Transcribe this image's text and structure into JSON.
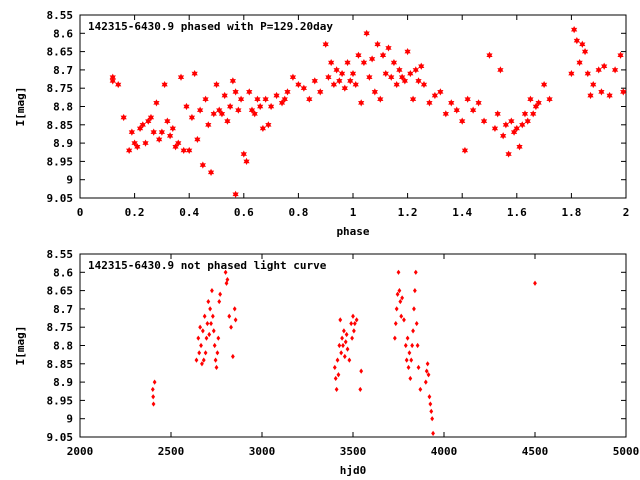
{
  "chart_data": [
    {
      "type": "scatter",
      "title": "142315-6430.9 phased with P=129.20day",
      "xlabel": "phase",
      "ylabel": "I[mag]",
      "xlim": [
        0,
        2
      ],
      "ylim": [
        8.55,
        9.05
      ],
      "y_inverted": true,
      "xticks": [
        "0",
        "0.2",
        "0.4",
        "0.6",
        "0.8",
        "1",
        "1.2",
        "1.4",
        "1.6",
        "1.8",
        "2"
      ],
      "yticks": [
        "8.55",
        "8.6",
        "8.65",
        "8.7",
        "8.75",
        "8.8",
        "8.85",
        "8.9",
        "8.95",
        "9",
        "9.05"
      ],
      "xtick_values": [
        0,
        0.2,
        0.4,
        0.6,
        0.8,
        1,
        1.2,
        1.4,
        1.6,
        1.8,
        2
      ],
      "ytick_values": [
        8.55,
        8.6,
        8.65,
        8.7,
        8.75,
        8.8,
        8.85,
        8.9,
        8.95,
        9,
        9.05
      ],
      "grid": false,
      "marker": "star",
      "color": "#ff0000",
      "points": [
        [
          0.12,
          8.72
        ],
        [
          0.12,
          8.73
        ],
        [
          0.14,
          8.74
        ],
        [
          0.16,
          8.83
        ],
        [
          0.18,
          8.92
        ],
        [
          0.19,
          8.87
        ],
        [
          0.2,
          8.9
        ],
        [
          0.21,
          8.91
        ],
        [
          0.22,
          8.86
        ],
        [
          0.23,
          8.85
        ],
        [
          0.24,
          8.9
        ],
        [
          0.25,
          8.84
        ],
        [
          0.26,
          8.83
        ],
        [
          0.27,
          8.87
        ],
        [
          0.28,
          8.79
        ],
        [
          0.29,
          8.89
        ],
        [
          0.3,
          8.87
        ],
        [
          0.31,
          8.74
        ],
        [
          0.32,
          8.84
        ],
        [
          0.33,
          8.88
        ],
        [
          0.34,
          8.86
        ],
        [
          0.35,
          8.91
        ],
        [
          0.36,
          8.9
        ],
        [
          0.37,
          8.72
        ],
        [
          0.38,
          8.92
        ],
        [
          0.39,
          8.8
        ],
        [
          0.4,
          8.92
        ],
        [
          0.41,
          8.83
        ],
        [
          0.42,
          8.71
        ],
        [
          0.43,
          8.89
        ],
        [
          0.44,
          8.81
        ],
        [
          0.45,
          8.96
        ],
        [
          0.46,
          8.78
        ],
        [
          0.47,
          8.85
        ],
        [
          0.48,
          8.98
        ],
        [
          0.49,
          8.82
        ],
        [
          0.5,
          8.74
        ],
        [
          0.51,
          8.81
        ],
        [
          0.52,
          8.82
        ],
        [
          0.53,
          8.77
        ],
        [
          0.54,
          8.84
        ],
        [
          0.55,
          8.8
        ],
        [
          0.56,
          8.73
        ],
        [
          0.57,
          8.76
        ],
        [
          0.57,
          9.04
        ],
        [
          0.58,
          8.81
        ],
        [
          0.59,
          8.78
        ],
        [
          0.6,
          8.93
        ],
        [
          0.61,
          8.95
        ],
        [
          0.62,
          8.76
        ],
        [
          0.63,
          8.81
        ],
        [
          0.64,
          8.82
        ],
        [
          0.65,
          8.78
        ],
        [
          0.66,
          8.8
        ],
        [
          0.67,
          8.86
        ],
        [
          0.68,
          8.78
        ],
        [
          0.69,
          8.85
        ],
        [
          0.7,
          8.8
        ],
        [
          0.72,
          8.77
        ],
        [
          0.74,
          8.79
        ],
        [
          0.75,
          8.78
        ],
        [
          0.76,
          8.76
        ],
        [
          0.78,
          8.72
        ],
        [
          0.8,
          8.74
        ],
        [
          0.82,
          8.75
        ],
        [
          0.84,
          8.78
        ],
        [
          0.86,
          8.73
        ],
        [
          0.88,
          8.76
        ],
        [
          0.9,
          8.63
        ],
        [
          0.91,
          8.72
        ],
        [
          0.92,
          8.68
        ],
        [
          0.93,
          8.74
        ],
        [
          0.94,
          8.7
        ],
        [
          0.95,
          8.73
        ],
        [
          0.96,
          8.71
        ],
        [
          0.97,
          8.75
        ],
        [
          0.98,
          8.68
        ],
        [
          0.99,
          8.73
        ],
        [
          1.0,
          8.71
        ],
        [
          1.01,
          8.74
        ],
        [
          1.02,
          8.66
        ],
        [
          1.03,
          8.79
        ],
        [
          1.04,
          8.68
        ],
        [
          1.05,
          8.6
        ],
        [
          1.06,
          8.72
        ],
        [
          1.07,
          8.67
        ],
        [
          1.08,
          8.76
        ],
        [
          1.09,
          8.63
        ],
        [
          1.1,
          8.78
        ],
        [
          1.11,
          8.66
        ],
        [
          1.12,
          8.71
        ],
        [
          1.13,
          8.64
        ],
        [
          1.14,
          8.72
        ],
        [
          1.15,
          8.68
        ],
        [
          1.16,
          8.74
        ],
        [
          1.17,
          8.7
        ],
        [
          1.18,
          8.72
        ],
        [
          1.19,
          8.73
        ],
        [
          1.2,
          8.65
        ],
        [
          1.21,
          8.71
        ],
        [
          1.22,
          8.78
        ],
        [
          1.23,
          8.7
        ],
        [
          1.24,
          8.73
        ],
        [
          1.25,
          8.69
        ],
        [
          1.26,
          8.74
        ],
        [
          1.28,
          8.79
        ],
        [
          1.3,
          8.77
        ],
        [
          1.32,
          8.76
        ],
        [
          1.34,
          8.82
        ],
        [
          1.36,
          8.79
        ],
        [
          1.38,
          8.81
        ],
        [
          1.4,
          8.84
        ],
        [
          1.41,
          8.92
        ],
        [
          1.42,
          8.78
        ],
        [
          1.44,
          8.81
        ],
        [
          1.46,
          8.79
        ],
        [
          1.48,
          8.84
        ],
        [
          1.5,
          8.66
        ],
        [
          1.52,
          8.86
        ],
        [
          1.53,
          8.82
        ],
        [
          1.54,
          8.7
        ],
        [
          1.55,
          8.88
        ],
        [
          1.56,
          8.85
        ],
        [
          1.57,
          8.93
        ],
        [
          1.58,
          8.84
        ],
        [
          1.59,
          8.87
        ],
        [
          1.6,
          8.86
        ],
        [
          1.61,
          8.91
        ],
        [
          1.62,
          8.85
        ],
        [
          1.63,
          8.82
        ],
        [
          1.64,
          8.84
        ],
        [
          1.65,
          8.78
        ],
        [
          1.66,
          8.82
        ],
        [
          1.67,
          8.8
        ],
        [
          1.68,
          8.79
        ],
        [
          1.7,
          8.74
        ],
        [
          1.72,
          8.78
        ],
        [
          1.8,
          8.71
        ],
        [
          1.81,
          8.59
        ],
        [
          1.82,
          8.62
        ],
        [
          1.83,
          8.68
        ],
        [
          1.84,
          8.63
        ],
        [
          1.85,
          8.65
        ],
        [
          1.86,
          8.71
        ],
        [
          1.87,
          8.77
        ],
        [
          1.88,
          8.74
        ],
        [
          1.9,
          8.7
        ],
        [
          1.91,
          8.76
        ],
        [
          1.92,
          8.69
        ],
        [
          1.94,
          8.77
        ],
        [
          1.96,
          8.7
        ],
        [
          1.98,
          8.66
        ],
        [
          1.99,
          8.76
        ]
      ]
    },
    {
      "type": "scatter",
      "title": "142315-6430.9 not phased light curve",
      "xlabel": "hjd0",
      "ylabel": "I[mag]",
      "xlim": [
        2000,
        5000
      ],
      "ylim": [
        8.55,
        9.05
      ],
      "y_inverted": true,
      "xticks": [
        "2000",
        "2500",
        "3000",
        "3500",
        "4000",
        "4500",
        "5000"
      ],
      "yticks": [
        "8.55",
        "8.6",
        "8.65",
        "8.7",
        "8.75",
        "8.8",
        "8.85",
        "8.9",
        "8.95",
        "9",
        "9.05"
      ],
      "xtick_values": [
        2000,
        2500,
        3000,
        3500,
        4000,
        4500,
        5000
      ],
      "ytick_values": [
        8.55,
        8.6,
        8.65,
        8.7,
        8.75,
        8.8,
        8.85,
        8.9,
        8.95,
        9,
        9.05
      ],
      "grid": false,
      "marker": "diamond",
      "color": "#ff0000",
      "points": [
        [
          2400,
          8.92
        ],
        [
          2402,
          8.94
        ],
        [
          2404,
          8.96
        ],
        [
          2410,
          8.9
        ],
        [
          2640,
          8.84
        ],
        [
          2650,
          8.78
        ],
        [
          2655,
          8.82
        ],
        [
          2660,
          8.75
        ],
        [
          2665,
          8.8
        ],
        [
          2670,
          8.85
        ],
        [
          2675,
          8.76
        ],
        [
          2680,
          8.84
        ],
        [
          2685,
          8.72
        ],
        [
          2690,
          8.82
        ],
        [
          2695,
          8.78
        ],
        [
          2700,
          8.74
        ],
        [
          2705,
          8.68
        ],
        [
          2710,
          8.77
        ],
        [
          2715,
          8.7
        ],
        [
          2720,
          8.74
        ],
        [
          2725,
          8.65
        ],
        [
          2730,
          8.72
        ],
        [
          2735,
          8.76
        ],
        [
          2740,
          8.8
        ],
        [
          2745,
          8.84
        ],
        [
          2750,
          8.86
        ],
        [
          2755,
          8.82
        ],
        [
          2760,
          8.78
        ],
        [
          2765,
          8.68
        ],
        [
          2770,
          8.66
        ],
        [
          2800,
          8.6
        ],
        [
          2805,
          8.63
        ],
        [
          2810,
          8.62
        ],
        [
          2820,
          8.72
        ],
        [
          2830,
          8.75
        ],
        [
          2840,
          8.83
        ],
        [
          2850,
          8.7
        ],
        [
          2855,
          8.73
        ],
        [
          3400,
          8.86
        ],
        [
          3405,
          8.89
        ],
        [
          3410,
          8.92
        ],
        [
          3415,
          8.84
        ],
        [
          3420,
          8.88
        ],
        [
          3425,
          8.8
        ],
        [
          3430,
          8.73
        ],
        [
          3435,
          8.82
        ],
        [
          3440,
          8.78
        ],
        [
          3445,
          8.8
        ],
        [
          3450,
          8.76
        ],
        [
          3455,
          8.83
        ],
        [
          3460,
          8.79
        ],
        [
          3465,
          8.77
        ],
        [
          3470,
          8.81
        ],
        [
          3480,
          8.84
        ],
        [
          3490,
          8.74
        ],
        [
          3495,
          8.78
        ],
        [
          3500,
          8.72
        ],
        [
          3505,
          8.76
        ],
        [
          3510,
          8.74
        ],
        [
          3520,
          8.73
        ],
        [
          3540,
          8.92
        ],
        [
          3545,
          8.87
        ],
        [
          3730,
          8.78
        ],
        [
          3735,
          8.74
        ],
        [
          3740,
          8.7
        ],
        [
          3745,
          8.66
        ],
        [
          3750,
          8.6
        ],
        [
          3755,
          8.65
        ],
        [
          3760,
          8.68
        ],
        [
          3765,
          8.72
        ],
        [
          3770,
          8.67
        ],
        [
          3780,
          8.73
        ],
        [
          3790,
          8.8
        ],
        [
          3795,
          8.84
        ],
        [
          3800,
          8.78
        ],
        [
          3805,
          8.86
        ],
        [
          3810,
          8.82
        ],
        [
          3815,
          8.89
        ],
        [
          3820,
          8.84
        ],
        [
          3825,
          8.8
        ],
        [
          3830,
          8.76
        ],
        [
          3835,
          8.7
        ],
        [
          3840,
          8.65
        ],
        [
          3845,
          8.6
        ],
        [
          3850,
          8.74
        ],
        [
          3855,
          8.8
        ],
        [
          3860,
          8.86
        ],
        [
          3870,
          8.92
        ],
        [
          3900,
          8.9
        ],
        [
          3905,
          8.87
        ],
        [
          3910,
          8.85
        ],
        [
          3915,
          8.88
        ],
        [
          3920,
          8.94
        ],
        [
          3925,
          8.96
        ],
        [
          3930,
          8.98
        ],
        [
          3935,
          9.0
        ],
        [
          3940,
          9.04
        ],
        [
          4500,
          8.63
        ]
      ]
    }
  ]
}
